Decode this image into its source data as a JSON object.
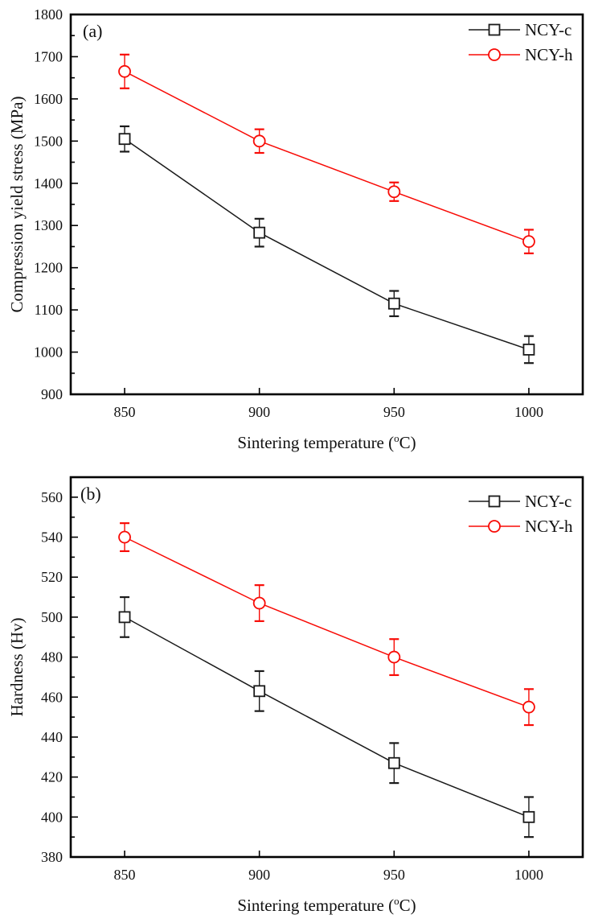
{
  "figure": {
    "background": "#ffffff",
    "frame_color": "#000000",
    "panel_count": 2
  },
  "chart_data": [
    {
      "type": "line",
      "panel_label": "(a)",
      "title": "",
      "xlabel": "Sintering temperature (°C)",
      "ylabel": "Compression yield stress (MPa)",
      "x": {
        "min": 830,
        "max": 1020,
        "ticks": [
          850,
          900,
          950,
          1000
        ]
      },
      "y": {
        "min": 900,
        "max": 1800,
        "major_step": 100,
        "minor_step": 50
      },
      "grid": false,
      "legend_position": "top-right",
      "x_values": [
        850,
        900,
        950,
        1000
      ],
      "series": [
        {
          "name": "NCY-c",
          "marker": "square",
          "color": "#1a1a1a",
          "values": [
            1505,
            1283,
            1115,
            1006
          ],
          "errors": [
            30,
            33,
            30,
            32
          ]
        },
        {
          "name": "NCY-h",
          "marker": "circle",
          "color": "#f80b06",
          "values": [
            1665,
            1500,
            1380,
            1262
          ],
          "errors": [
            40,
            28,
            22,
            28
          ]
        }
      ]
    },
    {
      "type": "line",
      "panel_label": "(b)",
      "title": "",
      "xlabel": "Sintering temperature (°C)",
      "ylabel": "Hardness (Hv)",
      "x": {
        "min": 830,
        "max": 1020,
        "ticks": [
          850,
          900,
          950,
          1000
        ]
      },
      "y": {
        "min": 380,
        "max": 570,
        "major_step": 20,
        "minor_step": 10
      },
      "grid": false,
      "legend_position": "top-right",
      "x_values": [
        850,
        900,
        950,
        1000
      ],
      "series": [
        {
          "name": "NCY-c",
          "marker": "square",
          "color": "#1a1a1a",
          "values": [
            500,
            463,
            427,
            400
          ],
          "errors": [
            10,
            10,
            10,
            10
          ]
        },
        {
          "name": "NCY-h",
          "marker": "circle",
          "color": "#f80b06",
          "values": [
            540,
            507,
            480,
            455
          ],
          "errors": [
            7,
            9,
            9,
            9
          ]
        }
      ]
    }
  ]
}
